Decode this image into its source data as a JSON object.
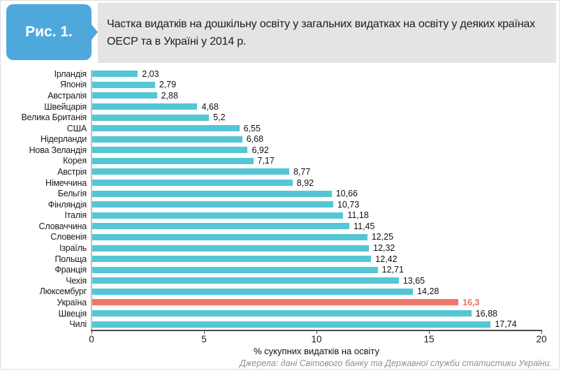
{
  "page": {
    "figure_label": "Рис. 1.",
    "title": "Частка видатків на дошкільну освіту у загальних видатках на освіту у деяких країнах ОЕСР та в Україні у 2014 р.",
    "source": "Джерела: дані Світового банку та Державної служби статистики України."
  },
  "colors": {
    "bar": "#55C6D5",
    "highlight_bar": "#F0766A",
    "highlight_value_text": "#EE6E60",
    "badge_bg": "#4FA8DC",
    "header_bg": "#E3E4E3",
    "axis_line": "#4A4A4A",
    "plot_left_line": "#BFBFBF"
  },
  "chart_data": {
    "type": "bar",
    "orientation": "horizontal",
    "xlabel": "% сукупних видатків на освіту",
    "xlim": [
      0,
      20
    ],
    "xticks": [
      0,
      5,
      10,
      15,
      20
    ],
    "grid": false,
    "legend": false,
    "categories": [
      "Ірландія",
      "Японія",
      "Австралія",
      "Швейцарія",
      "Велика Британія",
      "США",
      "Нідерланди",
      "Нова Зеландія",
      "Корея",
      "Австрія",
      "Німеччина",
      "Бельгія",
      "Фінляндія",
      "Італія",
      "Словаччина",
      "Словенія",
      "Ізраїль",
      "Польща",
      "Франція",
      "Чехія",
      "Люксембург",
      "Україна",
      "Швеція",
      "Чилі"
    ],
    "values": [
      2.03,
      2.79,
      2.88,
      4.68,
      5.2,
      6.55,
      6.68,
      6.92,
      7.17,
      8.77,
      8.92,
      10.66,
      10.73,
      11.18,
      11.45,
      12.25,
      12.32,
      12.42,
      12.71,
      13.65,
      14.28,
      16.3,
      16.88,
      17.74
    ],
    "value_labels": [
      "2,03",
      "2,79",
      "2,88",
      "4,68",
      "5,2",
      "6,55",
      "6,68",
      "6,92",
      "7,17",
      "8,77",
      "8,92",
      "10,66",
      "10,73",
      "11,18",
      "11,45",
      "12,25",
      "12,32",
      "12,42",
      "12,71",
      "13,65",
      "14,28",
      "16,3",
      "16,88",
      "17,74"
    ],
    "highlight_category": "Україна",
    "highlight_index": 21
  }
}
